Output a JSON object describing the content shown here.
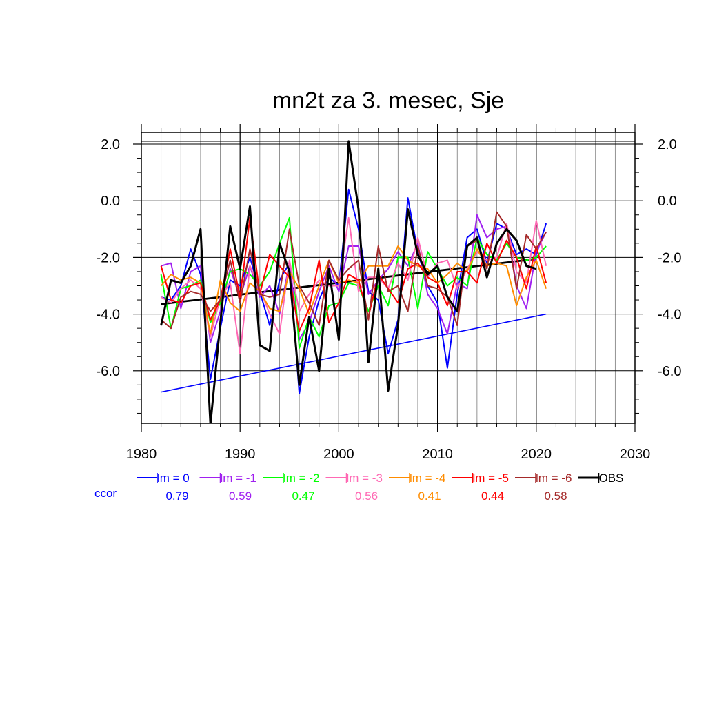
{
  "chart_data": {
    "type": "line",
    "title": "mn2t za 3. mesec, Sje",
    "xlabel": "",
    "ylabel": "",
    "xlim": [
      1980,
      2030
    ],
    "ylim": [
      -8.0,
      2.0
    ],
    "x_ticks": [
      "1980",
      "1990",
      "2000",
      "2010",
      "2020",
      "2030"
    ],
    "y_ticks": [
      "2.0",
      "0.0",
      "-2.0",
      "-4.0",
      "-6.0"
    ],
    "x": [
      1982,
      1983,
      1984,
      1985,
      1986,
      1987,
      1988,
      1989,
      1990,
      1991,
      1992,
      1993,
      1994,
      1995,
      1996,
      1997,
      1998,
      1999,
      2000,
      2001,
      2002,
      2003,
      2004,
      2005,
      2006,
      2007,
      2008,
      2009,
      2010,
      2011,
      2012,
      2013,
      2014,
      2015,
      2016,
      2017,
      2018,
      2019,
      2020,
      2021
    ],
    "series": [
      {
        "name": "lm = 0",
        "color": "#0000ff",
        "ccor": "0.79",
        "values": [
          -3.4,
          -3.5,
          -3.0,
          -1.7,
          -2.6,
          -6.3,
          -4.5,
          -2.8,
          -3.0,
          -2.0,
          -3.2,
          -4.4,
          -2.8,
          -2.2,
          -6.8,
          -4.8,
          -3.5,
          -2.7,
          -3.0,
          0.4,
          -1.0,
          -3.2,
          -3.5,
          -5.4,
          -4.2,
          0.1,
          -1.8,
          -3.0,
          -3.6,
          -5.9,
          -3.3,
          -1.3,
          -1.0,
          -2.2,
          -0.8,
          -1.0,
          -1.9,
          -1.7,
          -1.9,
          -0.8
        ]
      },
      {
        "name": "lm = -1",
        "color": "#a020f0",
        "ccor": "0.59",
        "values": [
          -2.3,
          -2.2,
          -3.8,
          -2.5,
          -2.3,
          -5.0,
          -3.9,
          -2.4,
          -3.4,
          -2.3,
          -3.4,
          -3.0,
          -4.0,
          -2.2,
          -4.9,
          -4.3,
          -3.2,
          -2.3,
          -3.2,
          -1.6,
          -1.6,
          -3.3,
          -2.8,
          -2.4,
          -1.8,
          -2.3,
          -1.5,
          -3.3,
          -3.8,
          -4.7,
          -2.9,
          -3.1,
          -0.5,
          -1.3,
          -1.0,
          -0.9,
          -3.0,
          -3.8,
          -1.8,
          -1.1
        ]
      },
      {
        "name": "lm = -2",
        "color": "#00ff00",
        "ccor": "0.47",
        "values": [
          -2.6,
          -4.5,
          -3.1,
          -3.0,
          -2.8,
          -4.3,
          -3.6,
          -2.5,
          -2.4,
          -2.6,
          -3.0,
          -2.5,
          -1.5,
          -0.6,
          -5.2,
          -4.1,
          -4.8,
          -3.7,
          -3.6,
          -2.9,
          -3.0,
          -3.9,
          -3.0,
          -3.7,
          -2.0,
          -2.0,
          -3.8,
          -1.8,
          -2.4,
          -3.0,
          -2.7,
          -3.0,
          -1.3,
          -1.9,
          -2.1,
          -1.5,
          -2.0,
          -2.1,
          -2.0,
          -1.6
        ]
      },
      {
        "name": "lm = -3",
        "color": "#ff69b4",
        "ccor": "0.56",
        "values": [
          -3.4,
          -3.6,
          -3.1,
          -2.8,
          -3.1,
          -4.8,
          -3.4,
          -2.9,
          -5.4,
          -2.3,
          -3.1,
          -4.0,
          -4.7,
          -2.1,
          -3.9,
          -3.3,
          -2.8,
          -3.0,
          -3.0,
          -0.6,
          -3.2,
          -2.7,
          -2.7,
          -3.1,
          -2.2,
          -2.8,
          -1.3,
          -2.7,
          -2.2,
          -2.1,
          -3.1,
          -2.4,
          -1.8,
          -2.1,
          -2.0,
          -0.8,
          -2.5,
          -2.9,
          -0.7,
          -2.3
        ]
      },
      {
        "name": "lm = -4",
        "color": "#ff8c00",
        "ccor": "0.41",
        "values": [
          -3.0,
          -2.6,
          -2.8,
          -2.7,
          -2.9,
          -4.7,
          -2.8,
          -3.6,
          -3.9,
          -2.9,
          -3.2,
          -3.8,
          -3.9,
          -2.5,
          -3.1,
          -4.0,
          -3.0,
          -2.1,
          -2.9,
          -2.8,
          -2.9,
          -2.3,
          -2.3,
          -2.3,
          -1.6,
          -2.1,
          -2.3,
          -2.4,
          -2.9,
          -2.6,
          -2.2,
          -2.5,
          -1.7,
          -2.3,
          -2.2,
          -2.3,
          -3.7,
          -2.7,
          -2.1,
          -3.1
        ]
      },
      {
        "name": "lm = -5",
        "color": "#ff0000",
        "ccor": "0.44",
        "values": [
          -2.3,
          -3.5,
          -3.6,
          -3.0,
          -2.9,
          -4.2,
          -3.5,
          -1.7,
          -3.4,
          -0.6,
          -3.3,
          -1.9,
          -2.3,
          -2.7,
          -4.6,
          -3.8,
          -2.1,
          -4.3,
          -3.6,
          -2.6,
          -2.8,
          -4.1,
          -2.6,
          -3.1,
          -3.6,
          -2.4,
          -2.2,
          -2.7,
          -2.9,
          -3.7,
          -2.5,
          -2.5,
          -2.9,
          -1.5,
          -2.2,
          -1.4,
          -2.0,
          -3.1,
          -1.6,
          -2.9
        ]
      },
      {
        "name": "lm = -6",
        "color": "#a52a2a",
        "ccor": "0.58",
        "values": [
          -4.2,
          -4.5,
          -3.4,
          -3.2,
          -3.3,
          -3.9,
          -3.5,
          -2.1,
          -3.6,
          -1.7,
          -3.3,
          -3.4,
          -3.3,
          -1.0,
          -3.0,
          -3.6,
          -4.4,
          -2.1,
          -2.8,
          -2.4,
          -2.1,
          -4.2,
          -1.6,
          -3.2,
          -3.0,
          -3.9,
          -1.6,
          -3.0,
          -3.1,
          -3.4,
          -4.4,
          -1.6,
          -1.4,
          -2.4,
          -0.4,
          -0.9,
          -3.1,
          -1.2,
          -1.7,
          -1.1
        ]
      },
      {
        "name": "OBS",
        "color": "#000000",
        "ccor": "",
        "values": [
          -4.4,
          -2.8,
          -2.9,
          -2.3,
          -1.0,
          -7.9,
          -4.3,
          -0.9,
          -2.4,
          -0.2,
          -5.1,
          -5.3,
          -1.5,
          -2.5,
          -6.5,
          -4.1,
          -6.0,
          -2.4,
          -4.9,
          2.1,
          -0.3,
          -5.7,
          -2.4,
          -6.7,
          -4.4,
          -0.3,
          -1.9,
          -2.6,
          -2.3,
          -3.4,
          -3.9,
          -1.6,
          -1.3,
          -2.7,
          -1.5,
          -1.0,
          -1.4,
          -2.3,
          -2.4,
          null
        ]
      }
    ],
    "trend_lines": [
      {
        "series": "lm = 0",
        "color": "#0000ff",
        "start": [
          1982,
          -6.75
        ],
        "end": [
          2021,
          -4.0
        ]
      },
      {
        "series": "OBS",
        "color": "#000000",
        "start": [
          1982,
          -3.65
        ],
        "end": [
          2020,
          -2.05
        ]
      }
    ],
    "legend": {
      "placement": "bottom",
      "ccor_label": "ccor"
    },
    "grid": true
  }
}
